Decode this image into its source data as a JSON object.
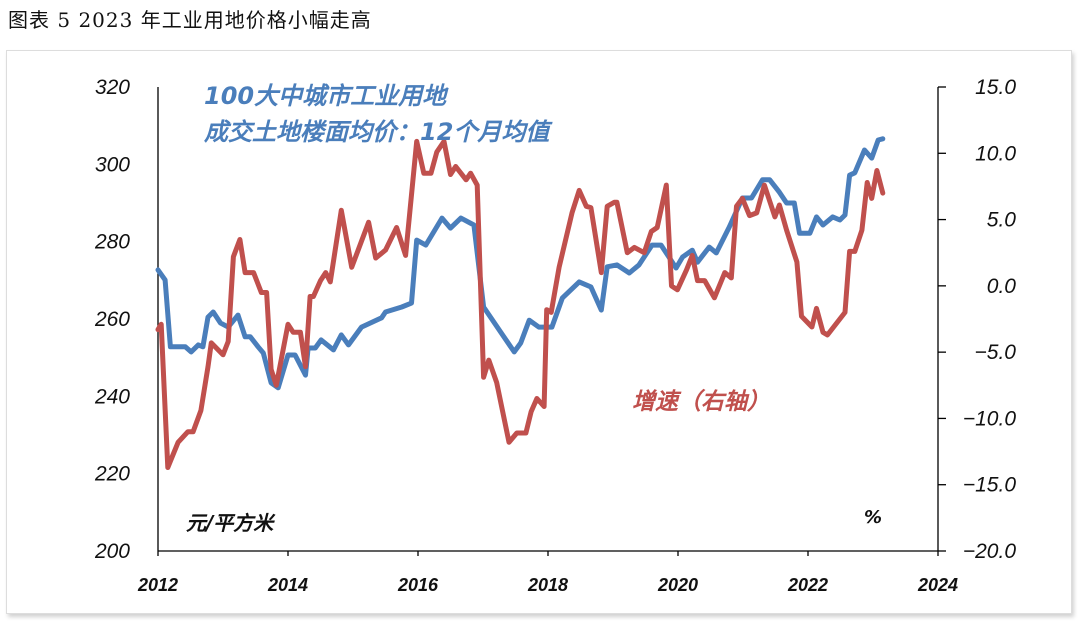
{
  "title": "图表 5 2023 年工业用地价格小幅走高",
  "chart_data": {
    "type": "line",
    "title": "",
    "left_axis": {
      "unit_label": "元/平方米",
      "range": [
        200,
        320
      ],
      "ticks": [
        "320",
        "300",
        "280",
        "260",
        "240",
        "220",
        "200"
      ]
    },
    "right_axis": {
      "unit_label": "%",
      "range": [
        -20,
        15
      ],
      "ticks": [
        "15.0",
        "10.0",
        "5.0",
        "0.0",
        "-5.0",
        "-10.0",
        "-15.0",
        "-20.0"
      ]
    },
    "x_axis": {
      "range": [
        2012,
        2024
      ],
      "ticks": [
        "2012",
        "2014",
        "2016",
        "2018",
        "2020",
        "2022",
        "2024"
      ]
    },
    "grid": false,
    "series": [
      {
        "name": "100大中城市工业用地\n成交土地楼面均价：12个月均值",
        "name_lines": [
          "100大中城市工业用地",
          "成交土地楼面均价：12个月均值"
        ],
        "axis": "left",
        "color": "#4a7ebb",
        "x": [
          2012.0,
          2012.11,
          2012.19,
          2012.42,
          2012.51,
          2012.62,
          2012.69,
          2012.77,
          2012.85,
          2012.96,
          2013.08,
          2013.23,
          2013.34,
          2013.42,
          2013.54,
          2013.62,
          2013.74,
          2013.85,
          2014.0,
          2014.11,
          2014.27,
          2014.31,
          2014.42,
          2014.51,
          2014.7,
          2014.82,
          2014.93,
          2015.13,
          2015.44,
          2015.5,
          2015.75,
          2015.9,
          2015.98,
          2016.12,
          2016.37,
          2016.5,
          2016.66,
          2016.86,
          2017.01,
          2017.28,
          2017.48,
          2017.58,
          2017.71,
          2017.86,
          2017.94,
          2018.06,
          2018.22,
          2018.48,
          2018.66,
          2018.82,
          2018.91,
          2019.06,
          2019.25,
          2019.4,
          2019.6,
          2019.74,
          2019.97,
          2020.07,
          2020.22,
          2020.3,
          2020.48,
          2020.59,
          2020.79,
          2020.99,
          2021.13,
          2021.3,
          2021.41,
          2021.56,
          2021.67,
          2021.79,
          2021.87,
          2022.03,
          2022.13,
          2022.23,
          2022.38,
          2022.49,
          2022.57,
          2022.64,
          2022.72,
          2022.87,
          2022.98,
          2023.08,
          2023.15
        ],
        "values": [
          272.7,
          270.1,
          252.8,
          252.8,
          251.5,
          253.3,
          252.8,
          260.5,
          261.8,
          259.0,
          257.9,
          261.0,
          255.4,
          255.4,
          252.8,
          251.2,
          243.5,
          242.2,
          250.7,
          250.7,
          245.5,
          252.5,
          252.5,
          254.6,
          252.0,
          255.9,
          253.3,
          257.9,
          260.3,
          261.8,
          263.1,
          264.1,
          280.4,
          279.1,
          286.1,
          283.5,
          286.1,
          284.3,
          263.1,
          256.4,
          251.5,
          253.8,
          259.7,
          257.9,
          257.9,
          257.9,
          265.4,
          269.6,
          268.3,
          262.3,
          273.5,
          274.0,
          271.9,
          274.0,
          279.1,
          279.1,
          273.2,
          276.0,
          277.8,
          274.7,
          278.6,
          277.1,
          283.8,
          291.3,
          291.3,
          296.0,
          296.0,
          292.8,
          290.0,
          290.0,
          282.2,
          282.2,
          286.4,
          284.3,
          286.4,
          285.6,
          286.9,
          297.2,
          297.8,
          303.7,
          301.6,
          306.3,
          306.6
        ]
      },
      {
        "name": "增速（右轴）",
        "axis": "right",
        "color": "#c0504d",
        "x": [
          2012.0,
          2012.05,
          2012.15,
          2012.31,
          2012.46,
          2012.54,
          2012.66,
          2012.77,
          2012.82,
          2013.0,
          2013.08,
          2013.16,
          2013.26,
          2013.34,
          2013.47,
          2013.59,
          2013.67,
          2013.74,
          2013.82,
          2014.0,
          2014.08,
          2014.19,
          2014.27,
          2014.34,
          2014.39,
          2014.5,
          2014.58,
          2014.65,
          2014.82,
          2014.98,
          2015.24,
          2015.35,
          2015.5,
          2015.67,
          2015.81,
          2015.98,
          2016.09,
          2016.2,
          2016.29,
          2016.4,
          2016.5,
          2016.58,
          2016.74,
          2016.81,
          2016.91,
          2017.01,
          2017.09,
          2017.21,
          2017.4,
          2017.52,
          2017.66,
          2017.74,
          2017.83,
          2017.94,
          2017.98,
          2018.05,
          2018.17,
          2018.37,
          2018.48,
          2018.59,
          2018.66,
          2018.82,
          2018.91,
          2019.02,
          2019.06,
          2019.22,
          2019.33,
          2019.48,
          2019.59,
          2019.68,
          2019.82,
          2019.9,
          2019.99,
          2020.13,
          2020.22,
          2020.3,
          2020.41,
          2020.56,
          2020.72,
          2020.82,
          2020.9,
          2020.99,
          2021.1,
          2021.21,
          2021.33,
          2021.49,
          2021.56,
          2021.67,
          2021.83,
          2021.9,
          2022.06,
          2022.13,
          2022.23,
          2022.3,
          2022.57,
          2022.64,
          2022.72,
          2022.83,
          2022.91,
          2022.98,
          2023.06,
          2023.15
        ],
        "values": [
          -3.3,
          -2.9,
          -13.7,
          -11.8,
          -11.0,
          -11.0,
          -9.4,
          -6.1,
          -4.3,
          -5.2,
          -4.2,
          2.2,
          3.5,
          1.0,
          1.0,
          -0.5,
          -0.5,
          -6.3,
          -7.5,
          -2.9,
          -3.5,
          -3.5,
          -6.1,
          -0.8,
          -0.8,
          0.4,
          1.0,
          0.3,
          5.7,
          1.4,
          4.8,
          2.1,
          2.7,
          4.4,
          2.3,
          10.9,
          8.5,
          8.5,
          10.1,
          10.9,
          8.4,
          9.0,
          8.0,
          8.5,
          7.6,
          -6.9,
          -5.6,
          -7.3,
          -11.8,
          -11.1,
          -11.1,
          -9.5,
          -8.5,
          -9.1,
          -1.8,
          -2.0,
          1.4,
          5.5,
          7.2,
          6.0,
          5.9,
          1.0,
          6.0,
          6.3,
          6.3,
          2.5,
          2.9,
          2.5,
          4.1,
          4.4,
          7.6,
          0.0,
          -0.3,
          1.2,
          2.3,
          0.4,
          0.4,
          -0.9,
          1.0,
          0.6,
          6.0,
          6.6,
          5.3,
          5.5,
          7.6,
          5.2,
          6.1,
          4.2,
          1.8,
          -2.3,
          -3.1,
          -1.7,
          -3.5,
          -3.7,
          -2.0,
          2.6,
          2.6,
          4.2,
          7.8,
          6.6,
          8.7,
          7.0
        ]
      }
    ]
  }
}
